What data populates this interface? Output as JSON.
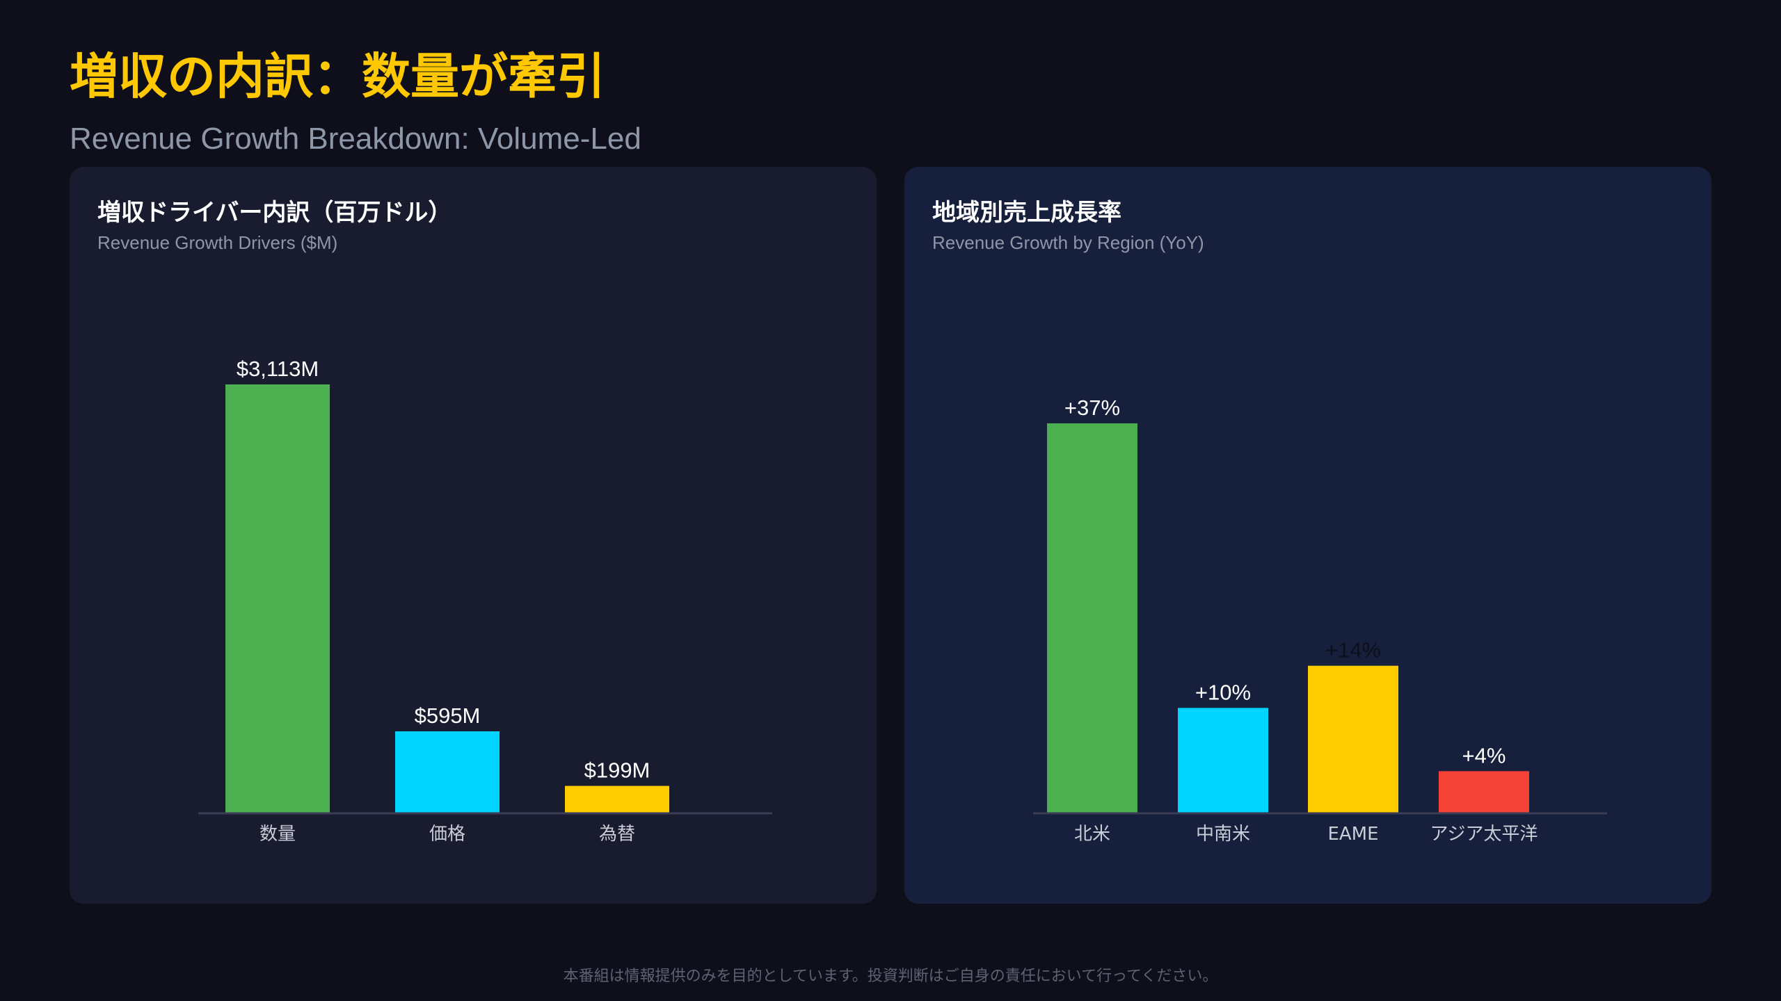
{
  "header": {
    "title": "増収の内訳：数量が牽引",
    "subtitle": "Revenue Growth Breakdown: Volume-Led"
  },
  "footer": {
    "disclaimer": "本番組は情報提供のみを目的としています。投資判断はご自身の責任において行ってください。"
  },
  "colors": {
    "background": "#0e0f1a",
    "title_accent": "#ffc800",
    "green": "#4caf50",
    "cyan": "#00d4ff",
    "yellow": "#ffcc00",
    "red": "#f44336",
    "axis": "#3a3d55",
    "tick_text": "#c9cdd8",
    "value_text": "#ffffff"
  },
  "chart_data": [
    {
      "type": "bar",
      "title": "増収ドライバー内訳（百万ドル）",
      "subtitle": "Revenue Growth Drivers ($M)",
      "categories": [
        "数量",
        "価格",
        "為替"
      ],
      "values": [
        3113,
        595,
        199
      ],
      "value_labels": [
        "$3,113M",
        "$595M",
        "$199M"
      ],
      "colors": [
        "#4caf50",
        "#00d4ff",
        "#ffcc00"
      ],
      "ylim": [
        0,
        3113
      ],
      "grid": false,
      "legend": "none"
    },
    {
      "type": "bar",
      "title": "地域別売上成長率",
      "subtitle": "Revenue Growth by Region (YoY)",
      "categories": [
        "北米",
        "中南米",
        "EAME",
        "アジア太平洋"
      ],
      "values": [
        37,
        10,
        14,
        4
      ],
      "value_labels": [
        "+37%",
        "+10%",
        "+14%",
        "+4%"
      ],
      "label_colors": [
        "#ffffff",
        "#ffffff",
        "#0e0f1a",
        "#ffffff"
      ],
      "colors": [
        "#4caf50",
        "#00d4ff",
        "#ffcc00",
        "#f44336"
      ],
      "ylim": [
        0,
        37
      ],
      "grid": false,
      "legend": "none"
    }
  ]
}
